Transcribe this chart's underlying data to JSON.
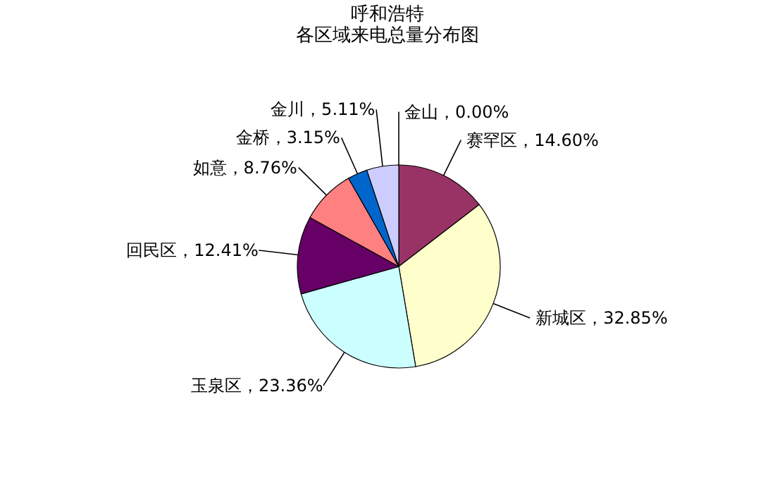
{
  "chart_data": {
    "type": "pie",
    "title": "呼和浩特",
    "subtitle": "各区域来电总量分布图",
    "categories": [
      "金山",
      "赛罕区",
      "新城区",
      "玉泉区",
      "回民区",
      "如意",
      "金桥",
      "金川"
    ],
    "values": [
      0.0,
      14.6,
      32.85,
      23.36,
      12.41,
      8.76,
      3.15,
      5.11
    ],
    "colors": [
      "#9999ff",
      "#993366",
      "#ffffcc",
      "#ccffff",
      "#660066",
      "#ff8080",
      "#0066cc",
      "#ccccff"
    ],
    "value_labels": [
      "，0.00%",
      "，14.60%",
      "，32.85%",
      "，23.36%",
      "，12.41%",
      "，8.76%",
      "，3.15%",
      "，5.11%"
    ],
    "legend": false
  }
}
